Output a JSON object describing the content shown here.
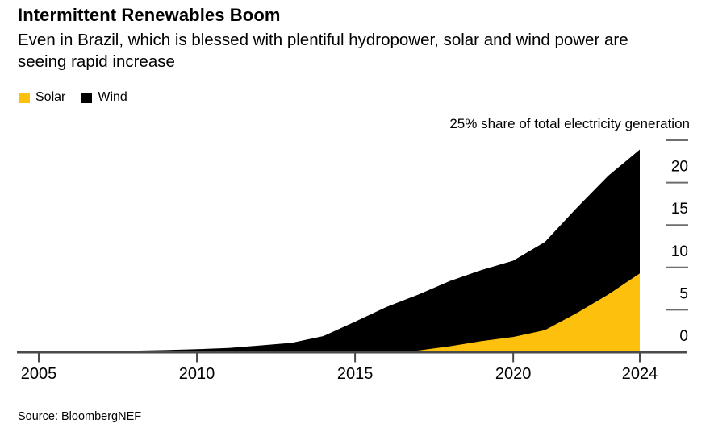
{
  "chart_data": {
    "type": "area",
    "stacked": true,
    "title": "Intermittent Renewables Boom",
    "subtitle": "Even in Brazil, which is blessed with plentiful hydropower, solar and wind power are seeing rapid increase",
    "axis_label": "25% share of total electricity generation",
    "source": "Source: BloombergNEF",
    "x": [
      2005,
      2006,
      2007,
      2008,
      2009,
      2010,
      2011,
      2012,
      2013,
      2014,
      2015,
      2016,
      2017,
      2018,
      2019,
      2020,
      2021,
      2022,
      2023,
      2024
    ],
    "series": [
      {
        "name": "Solar",
        "color": "#fdc00d",
        "values": [
          0,
          0,
          0,
          0,
          0,
          0,
          0,
          0,
          0,
          0,
          0,
          0.05,
          0.2,
          0.7,
          1.3,
          1.8,
          2.6,
          4.6,
          6.8,
          9.3
        ]
      },
      {
        "name": "Wind",
        "color": "#000000",
        "values": [
          0.05,
          0.08,
          0.12,
          0.18,
          0.25,
          0.35,
          0.5,
          0.8,
          1.1,
          1.9,
          3.6,
          5.3,
          6.6,
          7.7,
          8.4,
          9.0,
          10.4,
          12.4,
          14.0,
          14.6
        ]
      }
    ],
    "ylim": [
      0,
      25
    ],
    "yticks": [
      0,
      5,
      10,
      15,
      20,
      25
    ],
    "ytick_labels": [
      "0",
      "5",
      "10",
      "15",
      "20"
    ],
    "xticks": [
      2005,
      2010,
      2015,
      2020,
      2024
    ],
    "grid": false,
    "legend_position": "top-left",
    "y_axis_side": "right",
    "axis_colors": {
      "baseline": "#4a4a4a",
      "tick_dash": "#6e6e6e",
      "label": "#000000"
    }
  }
}
